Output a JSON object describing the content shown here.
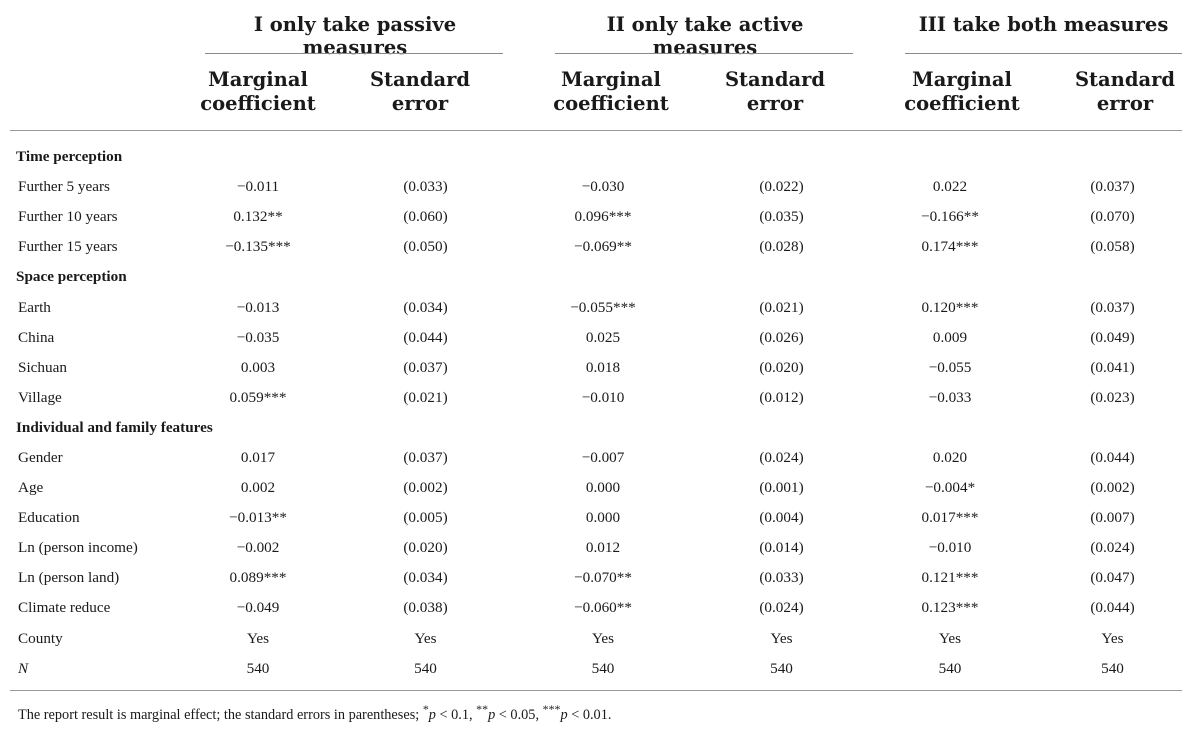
{
  "groups": [
    {
      "title": "I only take passive measures"
    },
    {
      "title": "II only take active measures"
    },
    {
      "title": "III take both measures"
    }
  ],
  "col_headers": [
    {
      "line1": "Marginal",
      "line2": "coefficient"
    },
    {
      "line1": "Standard",
      "line2": "error"
    },
    {
      "line1": "Marginal",
      "line2": "coefficient"
    },
    {
      "line1": "Standard",
      "line2": "error"
    },
    {
      "line1": "Marginal",
      "line2": "coefficient"
    },
    {
      "line1": "Standard",
      "line2": "error"
    }
  ],
  "rows": [
    {
      "label": "Time perception",
      "section": true
    },
    {
      "label": "Further 5 years",
      "values": [
        "−0.011",
        "(0.033)",
        "−0.030",
        "(0.022)",
        "0.022",
        "(0.037)"
      ]
    },
    {
      "label": "Further 10 years",
      "values": [
        "0.132**",
        "(0.060)",
        "0.096***",
        "(0.035)",
        "−0.166**",
        "(0.070)"
      ]
    },
    {
      "label": "Further 15 years",
      "values": [
        "−0.135***",
        "(0.050)",
        "−0.069**",
        "(0.028)",
        "0.174***",
        "(0.058)"
      ]
    },
    {
      "label": "Space perception",
      "section": true
    },
    {
      "label": "Earth",
      "values": [
        "−0.013",
        "(0.034)",
        "−0.055***",
        "(0.021)",
        "0.120***",
        "(0.037)"
      ]
    },
    {
      "label": "China",
      "values": [
        "−0.035",
        "(0.044)",
        "0.025",
        "(0.026)",
        "0.009",
        "(0.049)"
      ]
    },
    {
      "label": "Sichuan",
      "values": [
        "0.003",
        "(0.037)",
        "0.018",
        "(0.020)",
        "−0.055",
        "(0.041)"
      ]
    },
    {
      "label": "Village",
      "values": [
        "0.059***",
        "(0.021)",
        "−0.010",
        "(0.012)",
        "−0.033",
        "(0.023)"
      ]
    },
    {
      "label": "Individual and family features",
      "section": true
    },
    {
      "label": "Gender",
      "values": [
        "0.017",
        "(0.037)",
        "−0.007",
        "(0.024)",
        "0.020",
        "(0.044)"
      ]
    },
    {
      "label": "Age",
      "values": [
        "0.002",
        "(0.002)",
        "0.000",
        "(0.001)",
        "−0.004*",
        "(0.002)"
      ]
    },
    {
      "label": "Education",
      "values": [
        "−0.013**",
        "(0.005)",
        "0.000",
        "(0.004)",
        "0.017***",
        "(0.007)"
      ]
    },
    {
      "label": "Ln (person income)",
      "values": [
        "−0.002",
        "(0.020)",
        "0.012",
        "(0.014)",
        "−0.010",
        "(0.024)"
      ]
    },
    {
      "label": "Ln (person land)",
      "values": [
        "0.089***",
        "(0.034)",
        "−0.070**",
        "(0.033)",
        "0.121***",
        "(0.047)"
      ]
    },
    {
      "label": "Climate reduce",
      "values": [
        "−0.049",
        "(0.038)",
        "−0.060**",
        "(0.024)",
        "0.123***",
        "(0.044)"
      ]
    },
    {
      "label": "County",
      "values": [
        "Yes",
        "Yes",
        "Yes",
        "Yes",
        "Yes",
        "Yes"
      ]
    },
    {
      "label": "N",
      "italic": true,
      "values": [
        "540",
        "540",
        "540",
        "540",
        "540",
        "540"
      ]
    }
  ],
  "footnote": {
    "prefix": "The report result is marginal effect; the standard errors in parentheses; ",
    "s1": "*",
    "p1": "p",
    "t1": " < 0.1, ",
    "s2": "**",
    "p2": "p",
    "t2": " < 0.05, ",
    "s3": "***",
    "p3": "p",
    "t3": " < 0.01."
  }
}
